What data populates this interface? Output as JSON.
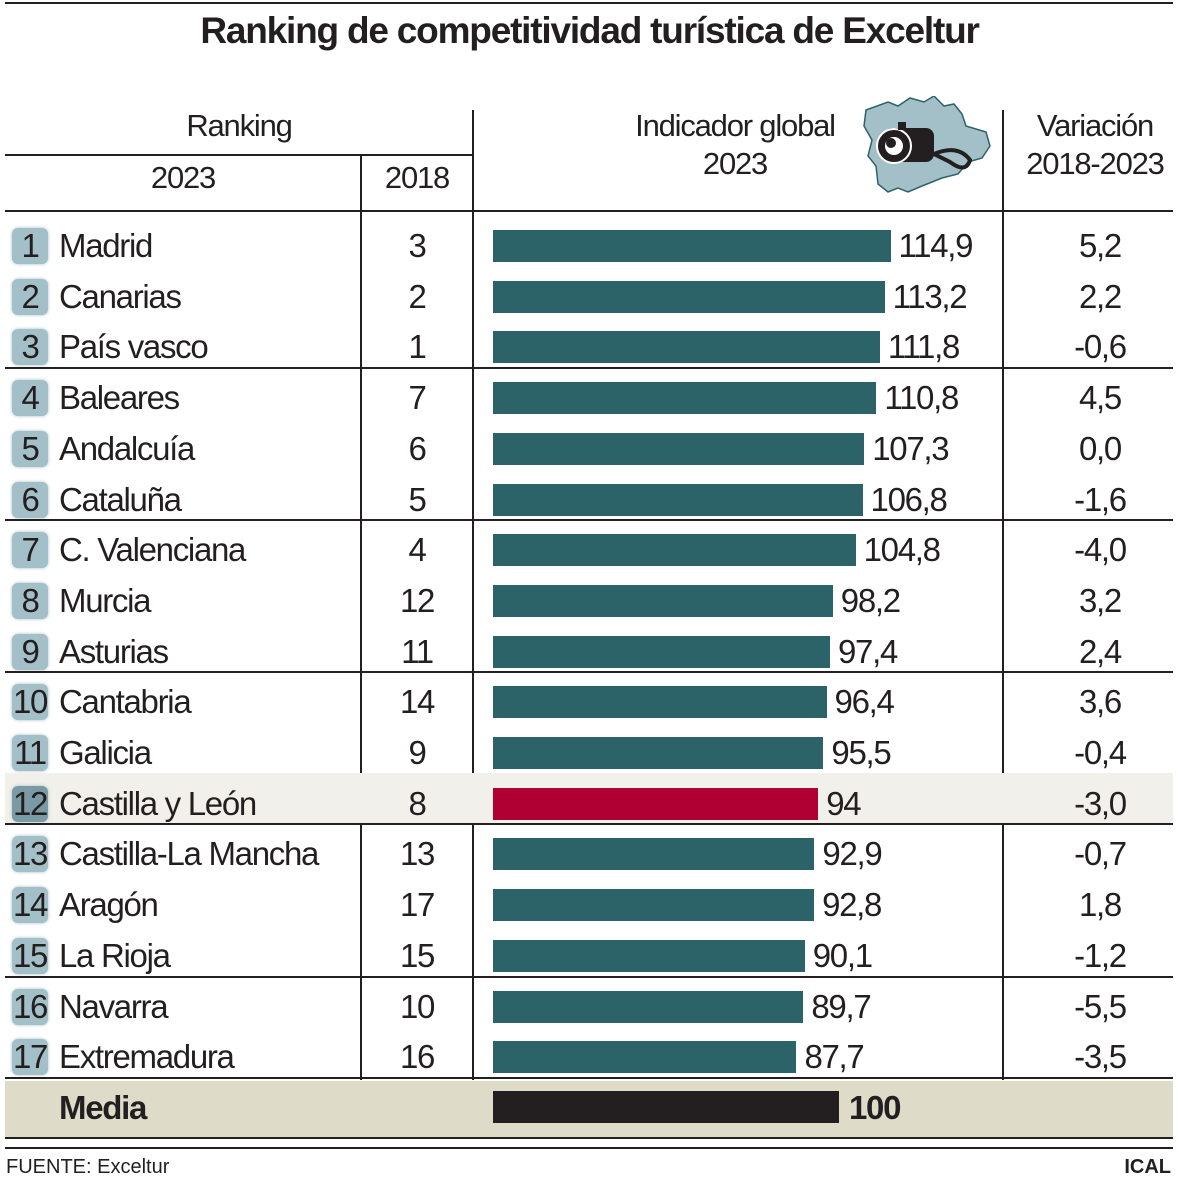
{
  "title": "Ranking de competitividad turística de Exceltur",
  "headers": {
    "ranking": "Ranking",
    "y2023": "2023",
    "y2018": "2018",
    "indicator_l1": "Indicador global",
    "indicator_l2": "2023",
    "variation_l1": "Variación",
    "variation_l2": "2018-2023"
  },
  "footer": {
    "source": "FUENTE: Exceltur",
    "agency": "ICAL"
  },
  "colors": {
    "bar": "#2c6368",
    "highlight_bar": "#b00033",
    "average_bar": "#231f20",
    "highlight_row": "#f1f0ea",
    "average_row": "#dedcc9",
    "badge": "#a3bfc7"
  },
  "icon": "castilla-leon-map-camera-icon",
  "chart_data": {
    "type": "bar",
    "title": "Ranking de competitividad turística de Exceltur",
    "xlabel": "Indicador global 2023",
    "highlight": "Castilla y León",
    "rows": [
      {
        "rank": "1",
        "region": "Madrid",
        "rank2018": "3",
        "value": 114.9,
        "label": "114,9",
        "variation": "5,2"
      },
      {
        "rank": "2",
        "region": "Canarias",
        "rank2018": "2",
        "value": 113.2,
        "label": "113,2",
        "variation": "2,2"
      },
      {
        "rank": "3",
        "region": "País vasco",
        "rank2018": "1",
        "value": 111.8,
        "label": "111,8",
        "variation": "-0,6"
      },
      {
        "rank": "4",
        "region": "Baleares",
        "rank2018": "7",
        "value": 110.8,
        "label": "110,8",
        "variation": "4,5"
      },
      {
        "rank": "5",
        "region": "Andalcuía",
        "rank2018": "6",
        "value": 107.3,
        "label": "107,3",
        "variation": "0,0"
      },
      {
        "rank": "6",
        "region": "Cataluña",
        "rank2018": "5",
        "value": 106.8,
        "label": "106,8",
        "variation": "-1,6"
      },
      {
        "rank": "7",
        "region": "C. Valenciana",
        "rank2018": "4",
        "value": 104.8,
        "label": "104,8",
        "variation": "-4,0"
      },
      {
        "rank": "8",
        "region": "Murcia",
        "rank2018": "12",
        "value": 98.2,
        "label": "98,2",
        "variation": "3,2"
      },
      {
        "rank": "9",
        "region": "Asturias",
        "rank2018": "11",
        "value": 97.4,
        "label": "97,4",
        "variation": "2,4"
      },
      {
        "rank": "10",
        "region": "Cantabria",
        "rank2018": "14",
        "value": 96.4,
        "label": "96,4",
        "variation": "3,6"
      },
      {
        "rank": "11",
        "region": "Galicia",
        "rank2018": "9",
        "value": 95.5,
        "label": "95,5",
        "variation": "-0,4"
      },
      {
        "rank": "12",
        "region": "Castilla y León",
        "rank2018": "8",
        "value": 94,
        "label": "94",
        "variation": "-3,0"
      },
      {
        "rank": "13",
        "region": "Castilla-La Mancha",
        "rank2018": "13",
        "value": 92.9,
        "label": "92,9",
        "variation": "-0,7"
      },
      {
        "rank": "14",
        "region": "Aragón",
        "rank2018": "17",
        "value": 92.8,
        "label": "92,8",
        "variation": "1,8"
      },
      {
        "rank": "15",
        "region": "La Rioja",
        "rank2018": "15",
        "value": 90.1,
        "label": "90,1",
        "variation": "-1,2"
      },
      {
        "rank": "16",
        "region": "Navarra",
        "rank2018": "10",
        "value": 89.7,
        "label": "89,7",
        "variation": "-5,5"
      },
      {
        "rank": "17",
        "region": "Extremadura",
        "rank2018": "16",
        "value": 87.7,
        "label": "87,7",
        "variation": "-3,5"
      }
    ],
    "average": {
      "region": "Media",
      "value": 100,
      "label": "100"
    }
  }
}
